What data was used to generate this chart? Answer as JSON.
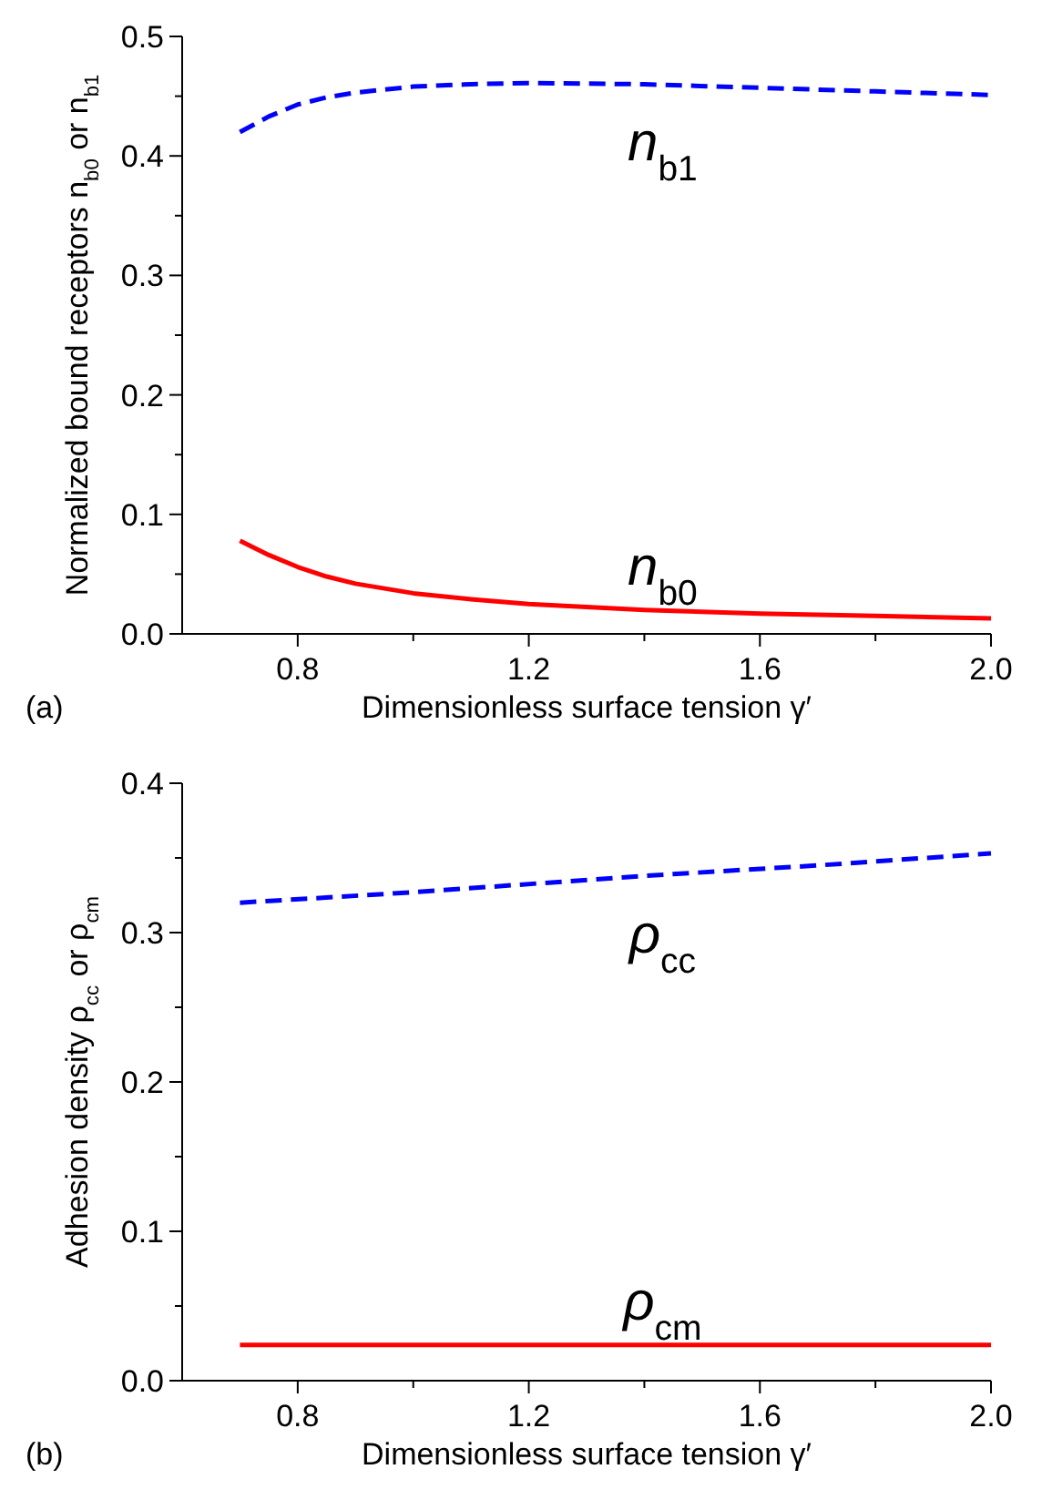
{
  "chart_data": [
    {
      "type": "line",
      "ylabel": "Normalized bound receptors n$_{b0}$ or n$_{b1}$",
      "xlabel": "Dimensionless surface tension γ′",
      "annotations": [
        "(a)"
      ],
      "xlim": [
        0.6,
        2.0
      ],
      "xticks": [
        0.8,
        {
          "value": 1.0,
          "label": null
        },
        1.2,
        {
          "value": 1.4,
          "label": null
        },
        1.6,
        {
          "value": 1.8,
          "label": null
        },
        {
          "value": 2.0,
          "label": "2.0"
        }
      ],
      "ylim": [
        0,
        0.5
      ],
      "yticks": [
        {
          "value": 0,
          "label": "0.0"
        },
        {
          "value": 0.05,
          "label": null
        },
        0.1,
        {
          "value": 0.15,
          "label": null
        },
        0.2,
        {
          "value": 0.25,
          "label": null
        },
        0.3,
        {
          "value": 0.35,
          "label": null
        },
        0.4,
        {
          "value": 0.45,
          "label": null
        },
        0.5
      ],
      "x": [
        0.7,
        0.75,
        0.8,
        0.85,
        0.9,
        1.0,
        1.1,
        1.2,
        1.4,
        1.6,
        1.8,
        2.0
      ],
      "series": [
        {
          "name": "n$_{b1}$",
          "color": "#0000ff",
          "line_style": "dashed",
          "values": [
            0.42,
            0.433,
            0.443,
            0.449,
            0.453,
            0.458,
            0.46,
            0.461,
            0.46,
            0.457,
            0.454,
            0.451
          ]
        },
        {
          "name": "n$_{b0}$",
          "color": "#ff0000",
          "line_style": "solid",
          "values": [
            0.078,
            0.066,
            0.056,
            0.048,
            0.042,
            0.034,
            0.029,
            0.025,
            0.02,
            0.017,
            0.015,
            0.013
          ]
        }
      ]
    },
    {
      "type": "line",
      "ylabel": "Adhesion density ρ$_{cc}$ or ρ$_{cm}$",
      "xlabel": "Dimensionless surface tension γ′",
      "annotations": [
        "(b)"
      ],
      "xlim": [
        0.6,
        2.0
      ],
      "xticks": [
        0.8,
        {
          "value": 1.0,
          "label": null
        },
        1.2,
        {
          "value": 1.4,
          "label": null
        },
        1.6,
        {
          "value": 1.8,
          "label": null
        },
        {
          "value": 2.0,
          "label": "2.0"
        }
      ],
      "ylim": [
        0,
        0.4
      ],
      "yticks": [
        {
          "value": 0,
          "label": "0.0"
        },
        {
          "value": 0.05,
          "label": null
        },
        0.1,
        {
          "value": 0.15,
          "label": null
        },
        0.2,
        {
          "value": 0.25,
          "label": null
        },
        0.3,
        {
          "value": 0.35,
          "label": null
        },
        0.4
      ],
      "x": [
        0.7,
        1.0,
        1.4,
        1.7,
        2.0
      ],
      "series": [
        {
          "name": "ρ$_{cc}$",
          "color": "#0000ff",
          "line_style": "dashed",
          "values": [
            0.32,
            0.327,
            0.338,
            0.345,
            0.353
          ]
        },
        {
          "name": "ρ$_{cm}$",
          "color": "#ff0000",
          "line_style": "solid",
          "values": [
            0.024,
            0.024,
            0.024,
            0.024,
            0.024
          ]
        }
      ]
    }
  ]
}
